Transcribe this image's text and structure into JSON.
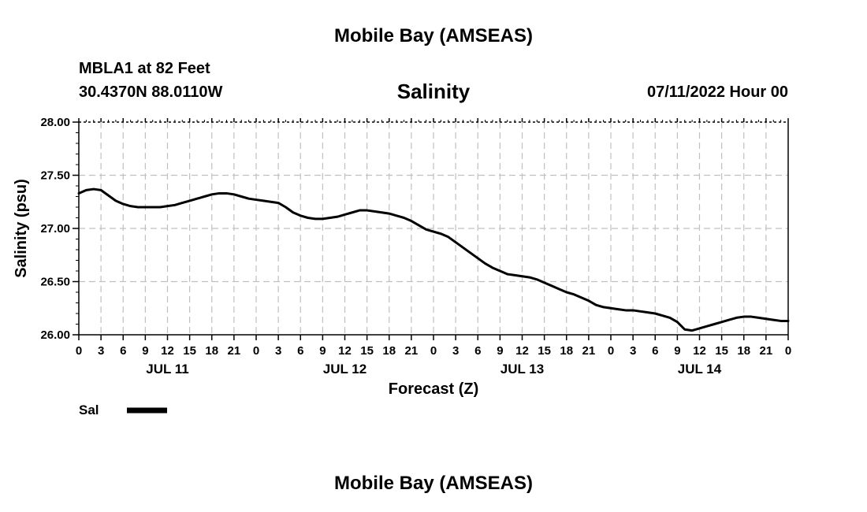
{
  "header": {
    "title": "Mobile Bay (AMSEAS)",
    "station": "MBLA1 at 82 Feet",
    "coords": "30.4370N  88.0110W",
    "datetime": "07/11/2022 Hour 00"
  },
  "footer": {
    "title": "Mobile Bay (AMSEAS)"
  },
  "chart_data": {
    "type": "line",
    "title": "Salinity",
    "xlabel": "Forecast (Z)",
    "ylabel": "Salinity (psu)",
    "xlim": [
      0,
      96
    ],
    "ylim": [
      26.0,
      28.0
    ],
    "y_ticks": [
      "26.00",
      "26.50",
      "27.00",
      "27.50",
      "28.00"
    ],
    "x_ticks": [
      0,
      3,
      6,
      9,
      12,
      15,
      18,
      21,
      24,
      27,
      30,
      33,
      36,
      39,
      42,
      45,
      48,
      51,
      54,
      57,
      60,
      63,
      66,
      69,
      72,
      75,
      78,
      81,
      84,
      87,
      90,
      93,
      96
    ],
    "x_tick_labels": [
      "0",
      "3",
      "6",
      "9",
      "12",
      "15",
      "18",
      "21",
      "0",
      "3",
      "6",
      "9",
      "12",
      "15",
      "18",
      "21",
      "0",
      "3",
      "6",
      "9",
      "12",
      "15",
      "18",
      "21",
      "0",
      "3",
      "6",
      "9",
      "12",
      "15",
      "18",
      "21",
      "0"
    ],
    "day_labels": [
      {
        "x": 12,
        "label": "JUL 11"
      },
      {
        "x": 36,
        "label": "JUL 12"
      },
      {
        "x": 60,
        "label": "JUL 13"
      },
      {
        "x": 84,
        "label": "JUL 14"
      }
    ],
    "grid": true,
    "legend": "bottom-left",
    "series": [
      {
        "name": "Sal",
        "color": "#000000",
        "x": [
          0,
          1,
          2,
          3,
          4,
          5,
          6,
          7,
          8,
          9,
          10,
          11,
          12,
          13,
          14,
          15,
          16,
          17,
          18,
          19,
          20,
          21,
          22,
          23,
          24,
          25,
          26,
          27,
          28,
          29,
          30,
          31,
          32,
          33,
          34,
          35,
          36,
          37,
          38,
          39,
          40,
          41,
          42,
          43,
          44,
          45,
          46,
          47,
          48,
          49,
          50,
          51,
          52,
          53,
          54,
          55,
          56,
          57,
          58,
          59,
          60,
          61,
          62,
          63,
          64,
          65,
          66,
          67,
          68,
          69,
          70,
          71,
          72,
          73,
          74,
          75,
          76,
          77,
          78,
          79,
          80,
          81,
          82,
          83,
          84,
          85,
          86,
          87,
          88,
          89,
          90,
          91,
          92,
          93,
          94,
          95,
          96
        ],
        "values": [
          27.33,
          27.36,
          27.37,
          27.36,
          27.31,
          27.26,
          27.23,
          27.21,
          27.2,
          27.2,
          27.2,
          27.2,
          27.21,
          27.22,
          27.24,
          27.26,
          27.28,
          27.3,
          27.32,
          27.33,
          27.33,
          27.32,
          27.3,
          27.28,
          27.27,
          27.26,
          27.25,
          27.24,
          27.2,
          27.15,
          27.12,
          27.1,
          27.09,
          27.09,
          27.1,
          27.11,
          27.13,
          27.15,
          27.17,
          27.17,
          27.16,
          27.15,
          27.14,
          27.12,
          27.1,
          27.07,
          27.03,
          26.99,
          26.97,
          26.95,
          26.92,
          26.87,
          26.82,
          26.77,
          26.72,
          26.67,
          26.63,
          26.6,
          26.57,
          26.56,
          26.55,
          26.54,
          26.52,
          26.49,
          26.46,
          26.43,
          26.4,
          26.38,
          26.35,
          26.32,
          26.28,
          26.26,
          26.25,
          26.24,
          26.23,
          26.23,
          26.22,
          26.21,
          26.2,
          26.18,
          26.16,
          26.12,
          26.05,
          26.04,
          26.06,
          26.08,
          26.1,
          26.12,
          26.14,
          26.16,
          26.17,
          26.17,
          26.16,
          26.15,
          26.14,
          26.13,
          26.13
        ]
      }
    ]
  }
}
